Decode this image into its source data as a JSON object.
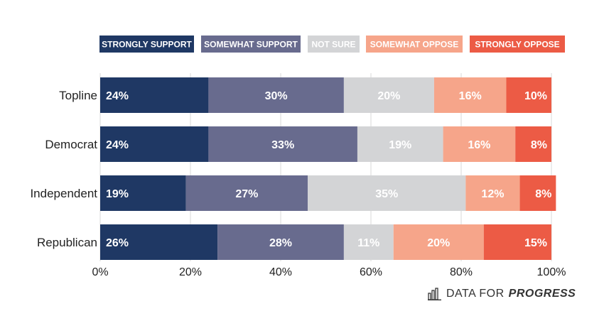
{
  "chart_data": {
    "type": "bar",
    "orientation": "horizontal",
    "stacked": true,
    "categories": [
      "Topline",
      "Democrat",
      "Independent",
      "Republican"
    ],
    "series": [
      {
        "name": "STRONGLY SUPPORT",
        "color": "#1f3864",
        "values": [
          24,
          24,
          19,
          26
        ]
      },
      {
        "name": "SOMEWHAT SUPPORT",
        "color": "#686b8e",
        "values": [
          30,
          33,
          27,
          28
        ]
      },
      {
        "name": "NOT SURE",
        "color": "#d3d4d6",
        "values": [
          20,
          19,
          35,
          11
        ]
      },
      {
        "name": "SOMEWHAT OPPOSE",
        "color": "#f6a58a",
        "values": [
          16,
          16,
          12,
          20
        ]
      },
      {
        "name": "STRONGLY OPPOSE",
        "color": "#ec5b45",
        "values": [
          10,
          8,
          8,
          15
        ]
      }
    ],
    "data_labels": [
      [
        "24%",
        "30%",
        "20%",
        "16%",
        "10%"
      ],
      [
        "24%",
        "33%",
        "19%",
        "16%",
        "8%"
      ],
      [
        "19%",
        "27%",
        "35%",
        "12%",
        "8%"
      ],
      [
        "26%",
        "28%",
        "11%",
        "20%",
        "15%"
      ]
    ],
    "x_ticks": [
      "0%",
      "20%",
      "40%",
      "60%",
      "80%",
      "100%"
    ],
    "xlim": [
      0,
      100
    ],
    "grid": true,
    "legend_position": "top"
  },
  "brand": {
    "text_plain": "DATA FOR",
    "text_bold": "PROGRESS",
    "icon": "bar-chart-logo-icon"
  }
}
